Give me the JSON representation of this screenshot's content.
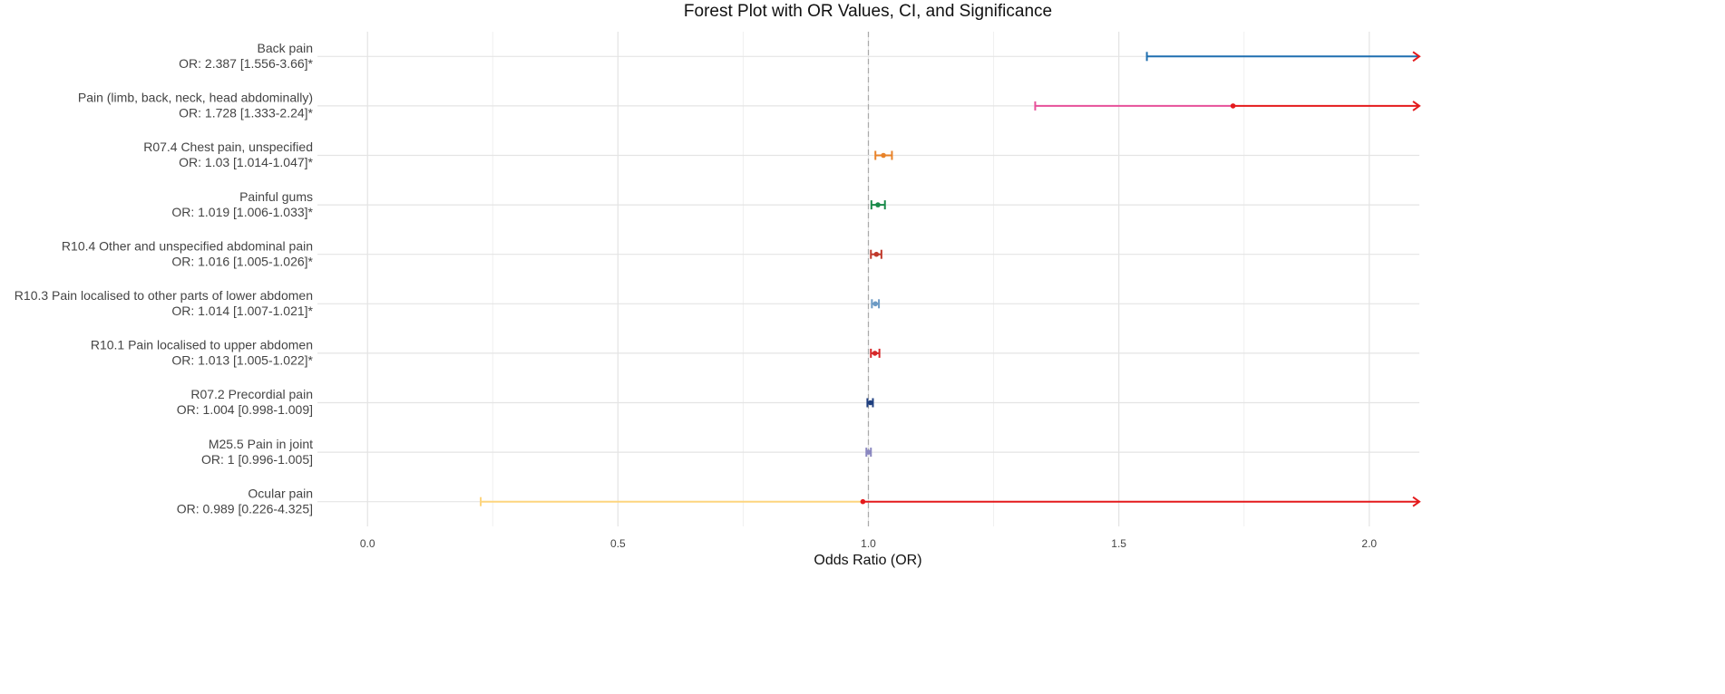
{
  "chart_data": {
    "type": "forest",
    "title": "Forest Plot with OR Values, CI, and Significance",
    "x_label": "Odds Ratio (OR)",
    "categories": [
      "Back pain",
      "Pain (limb, back, neck, head abdominally)",
      "R07.4 Chest pain, unspecified",
      "Painful gums",
      "R10.4 Other and unspecified abdominal pain",
      "R10.3 Pain localised to other parts of lower abdomen",
      "R10.1 Pain localised to upper abdomen",
      "R07.2 Precordial pain",
      "M25.5 Pain in joint",
      "Ocular pain"
    ],
    "values": [
      2.387,
      1.728,
      1.03,
      1.019,
      1.016,
      1.014,
      1.013,
      1.004,
      1,
      0.989
    ],
    "lower": [
      1.556,
      1.333,
      1.014,
      1.006,
      1.005,
      1.007,
      1.005,
      0.998,
      0.996,
      0.226
    ],
    "upper": [
      3.66,
      2.24,
      1.047,
      1.033,
      1.026,
      1.021,
      1.022,
      1.009,
      1.005,
      4.325
    ],
    "value_labels": [
      "OR: 2.387 [1.556-3.66]*",
      "OR: 1.728 [1.333-2.24]*",
      "OR: 1.03 [1.014-1.047]*",
      "OR: 1.019 [1.006-1.033]*",
      "OR: 1.016 [1.005-1.026]*",
      "OR: 1.014 [1.007-1.021]*",
      "OR: 1.013 [1.005-1.022]*",
      "OR: 1.004 [0.998-1.009]",
      "OR: 1 [0.996-1.005]",
      "OR: 0.989 [0.226-4.325]"
    ],
    "colors": [
      "#1f6fb0",
      "#e7509a",
      "#e8832a",
      "#1a8a4a",
      "#c0392b",
      "#6b9ac4",
      "#d62728",
      "#1f3f7f",
      "#8a87c0",
      "#fdd57e"
    ],
    "overflow_color": "#e41a1c",
    "xlim": [
      -0.1,
      2.1
    ],
    "xticks": [
      {
        "value": 0,
        "label": "0.0"
      },
      0.5,
      {
        "value": 1,
        "label": "1.0"
      },
      1.5,
      {
        "value": 2,
        "label": "2.0"
      }
    ],
    "x_minor": [
      0.25,
      0.75,
      1.25,
      1.75
    ],
    "ref_line": 1,
    "grid": true
  }
}
